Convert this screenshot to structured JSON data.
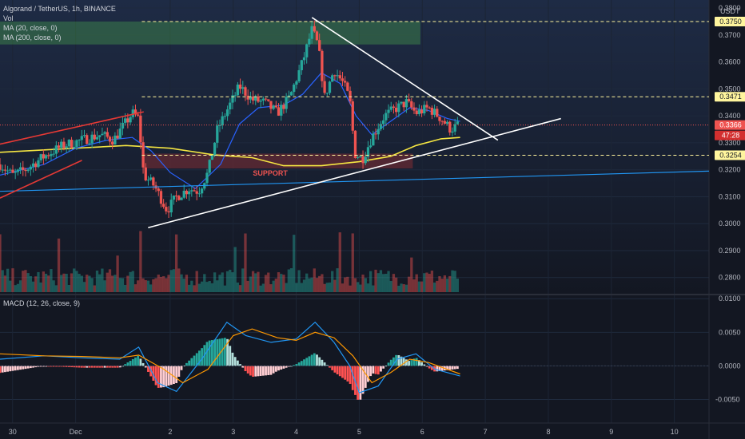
{
  "header": {
    "symbol": "Algorand / TetherUS, 1h, BINANCE",
    "vol_label": "Vol",
    "ma20_label": "MA (20, close, 0)",
    "ma200_label": "MA (200, close, 0)",
    "macd_label": "MACD (12, 26, close, 9)",
    "currency": "USDT"
  },
  "colors": {
    "background": "#131722",
    "up": "#26a69a",
    "down": "#ef5350",
    "ma20": "#2962ff",
    "ma200": "#f5e642",
    "macd_line": "#2196f3",
    "signal_line": "#ff9800",
    "triangle": "#ffffff",
    "support_channel": "#e53935",
    "long_trend": "#2196f3",
    "level_line": "#fff59d",
    "resistance_zone": "#4caf50"
  },
  "chart_data": [
    {
      "type": "candlestick",
      "title": "Algorand / TetherUS, 1h, BINANCE",
      "x_ticks": [
        "30",
        "Dec",
        "2",
        "3",
        "4",
        "5",
        "6",
        "7",
        "8",
        "9",
        "10"
      ],
      "y_ticks": [
        "0.3800",
        "0.3700",
        "0.3600",
        "0.3500",
        "0.3400",
        "0.3300",
        "0.3200",
        "0.3100",
        "0.3000",
        "0.2900",
        "0.2800"
      ],
      "y_range": [
        0.274,
        0.383
      ],
      "x_range_days": [
        -0.7,
        10.55
      ],
      "last_price": "0.3366",
      "countdown": "47:28",
      "levels": [
        {
          "value": 0.375,
          "label": "0.3750"
        },
        {
          "value": 0.3471,
          "label": "0.3471"
        },
        {
          "value": 0.3254,
          "label": "0.3254"
        }
      ],
      "zones": [
        {
          "name": "resistance",
          "from": 0.3665,
          "to": 0.375
        },
        {
          "name": "support",
          "label": "SUPPORT",
          "from": 0.3205,
          "to": 0.326
        }
      ],
      "annotations": [
        "SUPPORT"
      ],
      "keypoints": [
        [
          -0.7,
          0.322
        ],
        [
          -0.5,
          0.318
        ],
        [
          -0.3,
          0.32
        ],
        [
          0.0,
          0.325
        ],
        [
          0.3,
          0.329
        ],
        [
          0.6,
          0.331
        ],
        [
          0.9,
          0.333
        ],
        [
          1.1,
          0.331
        ],
        [
          1.25,
          0.336
        ],
        [
          1.4,
          0.341
        ],
        [
          1.5,
          0.339
        ],
        [
          1.58,
          0.318
        ],
        [
          1.75,
          0.314
        ],
        [
          1.95,
          0.305
        ],
        [
          2.1,
          0.31
        ],
        [
          2.3,
          0.313
        ],
        [
          2.45,
          0.312
        ],
        [
          2.6,
          0.319
        ],
        [
          2.75,
          0.335
        ],
        [
          2.9,
          0.342
        ],
        [
          3.1,
          0.351
        ],
        [
          3.3,
          0.346
        ],
        [
          3.5,
          0.345
        ],
        [
          3.7,
          0.341
        ],
        [
          3.9,
          0.347
        ],
        [
          4.1,
          0.36
        ],
        [
          4.25,
          0.372
        ],
        [
          4.35,
          0.366
        ],
        [
          4.45,
          0.347
        ],
        [
          4.6,
          0.357
        ],
        [
          4.75,
          0.352
        ],
        [
          4.85,
          0.346
        ],
        [
          4.93,
          0.326
        ],
        [
          5.05,
          0.324
        ],
        [
          5.2,
          0.332
        ],
        [
          5.4,
          0.34
        ],
        [
          5.6,
          0.343
        ],
        [
          5.75,
          0.345
        ],
        [
          5.9,
          0.341
        ],
        [
          6.1,
          0.343
        ],
        [
          6.3,
          0.339
        ],
        [
          6.45,
          0.335
        ],
        [
          6.6,
          0.337
        ]
      ],
      "ma20": [
        [
          -0.7,
          0.318
        ],
        [
          0.0,
          0.322
        ],
        [
          0.5,
          0.328
        ],
        [
          1.0,
          0.331
        ],
        [
          1.4,
          0.332
        ],
        [
          1.7,
          0.327
        ],
        [
          2.0,
          0.319
        ],
        [
          2.4,
          0.313
        ],
        [
          2.8,
          0.322
        ],
        [
          3.1,
          0.337
        ],
        [
          3.4,
          0.343
        ],
        [
          3.8,
          0.344
        ],
        [
          4.1,
          0.348
        ],
        [
          4.4,
          0.356
        ],
        [
          4.7,
          0.352
        ],
        [
          4.95,
          0.34
        ],
        [
          5.2,
          0.333
        ],
        [
          5.5,
          0.338
        ],
        [
          5.8,
          0.343
        ],
        [
          6.1,
          0.342
        ],
        [
          6.4,
          0.339
        ],
        [
          6.6,
          0.338
        ]
      ],
      "ma200": [
        [
          -0.7,
          0.3265
        ],
        [
          0.5,
          0.328
        ],
        [
          1.3,
          0.329
        ],
        [
          2.0,
          0.328
        ],
        [
          2.7,
          0.3255
        ],
        [
          3.3,
          0.3245
        ],
        [
          3.8,
          0.3215
        ],
        [
          4.4,
          0.3215
        ],
        [
          5.0,
          0.323
        ],
        [
          5.5,
          0.325
        ],
        [
          5.9,
          0.329
        ],
        [
          6.3,
          0.3315
        ],
        [
          6.6,
          0.332
        ]
      ],
      "macd": [
        [
          -0.7,
          0.001
        ],
        [
          0.0,
          0.0015
        ],
        [
          0.6,
          0.0012
        ],
        [
          1.2,
          0.001
        ],
        [
          1.5,
          0.0028
        ],
        [
          1.8,
          -0.0025
        ],
        [
          2.1,
          -0.0038
        ],
        [
          2.5,
          0.001
        ],
        [
          2.9,
          0.0065
        ],
        [
          3.2,
          0.0045
        ],
        [
          3.6,
          0.0035
        ],
        [
          4.0,
          0.004
        ],
        [
          4.3,
          0.0065
        ],
        [
          4.6,
          0.0035
        ],
        [
          4.85,
          0.0
        ],
        [
          5.0,
          -0.004
        ],
        [
          5.3,
          -0.003
        ],
        [
          5.6,
          0.001
        ],
        [
          5.9,
          0.0018
        ],
        [
          6.2,
          -0.0005
        ],
        [
          6.6,
          -0.0015
        ]
      ],
      "signal": [
        [
          -0.7,
          0.0018
        ],
        [
          0.0,
          0.0015
        ],
        [
          0.6,
          0.0014
        ],
        [
          1.2,
          0.0012
        ],
        [
          1.5,
          0.0016
        ],
        [
          1.9,
          -0.0005
        ],
        [
          2.2,
          -0.0025
        ],
        [
          2.6,
          -0.0005
        ],
        [
          3.0,
          0.0045
        ],
        [
          3.3,
          0.0055
        ],
        [
          3.7,
          0.0042
        ],
        [
          4.0,
          0.0038
        ],
        [
          4.3,
          0.005
        ],
        [
          4.6,
          0.0042
        ],
        [
          4.9,
          0.0015
        ],
        [
          5.2,
          -0.0025
        ],
        [
          5.5,
          -0.001
        ],
        [
          5.8,
          0.001
        ],
        [
          6.1,
          0.0005
        ],
        [
          6.6,
          -0.0012
        ]
      ],
      "macd_y_ticks": [
        "0.0100",
        "0.0050",
        "0.0000",
        "-0.0050"
      ],
      "macd_y_range": [
        -0.0085,
        0.0105
      ],
      "triangle": {
        "upper": [
          [
            4.25,
            0.3765
          ],
          [
            7.2,
            0.331
          ]
        ],
        "lower": [
          [
            1.65,
            0.2985
          ],
          [
            8.2,
            0.339
          ]
        ]
      },
      "support_channel": {
        "upper": [
          [
            -0.7,
            0.3295
          ],
          [
            1.58,
            0.3415
          ]
        ],
        "lower": [
          [
            -0.7,
            0.3095
          ],
          [
            0.6,
            0.3235
          ]
        ]
      },
      "long_trendline": [
        [
          -0.7,
          0.312
        ],
        [
          10.55,
          0.3195
        ]
      ]
    }
  ]
}
